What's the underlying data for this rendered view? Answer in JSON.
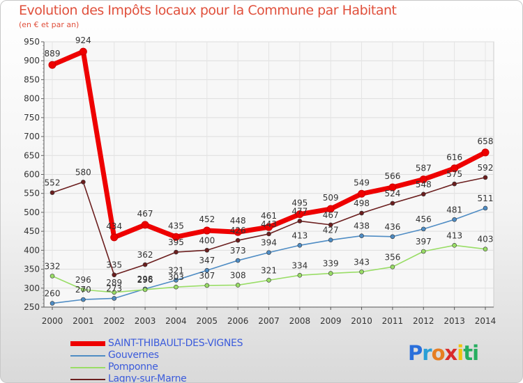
{
  "header": {
    "title": "Evolution des Impôts locaux pour la Commune par Habitant",
    "subtitle": "(en € et par an)"
  },
  "brand": {
    "letters": [
      "P",
      "r",
      "o",
      "x",
      "i",
      "t",
      "i"
    ],
    "colors": [
      "#2a6fdb",
      "#2a9fd6",
      "#e67e22",
      "#d92b2b",
      "#f1c40f",
      "#27ae60",
      "#27ae60"
    ]
  },
  "chart_data": {
    "type": "line",
    "title": "Evolution des Impôts locaux pour la Commune par Habitant",
    "ylabel": "(en € et par an)",
    "xlabel": "",
    "categories": [
      "2000",
      "2001",
      "2002",
      "2003",
      "2004",
      "2005",
      "2006",
      "2007",
      "2008",
      "2009",
      "2010",
      "2011",
      "2012",
      "2013",
      "2014"
    ],
    "ylim": [
      250,
      950
    ],
    "yticks": [
      "250",
      "300",
      "350",
      "400",
      "450",
      "500",
      "550",
      "600",
      "650",
      "700",
      "750",
      "800",
      "850",
      "900",
      "950"
    ],
    "series": [
      {
        "name": "SAINT-THIBAULT-DES-VIGNES",
        "color": "#ee0000",
        "values": [
          889,
          924,
          434,
          467,
          435,
          452,
          448,
          461,
          495,
          509,
          549,
          566,
          587,
          616,
          658
        ]
      },
      {
        "name": "Gouvernes",
        "color": "#4e8cc4",
        "values": [
          260,
          270,
          273,
          298,
          321,
          347,
          373,
          394,
          413,
          427,
          438,
          436,
          456,
          481,
          511
        ]
      },
      {
        "name": "Pomponne",
        "color": "#99dd66",
        "values": [
          332,
          296,
          289,
          296,
          303,
          307,
          308,
          321,
          334,
          339,
          343,
          356,
          397,
          413,
          403
        ]
      },
      {
        "name": "Lagny-sur-Marne",
        "color": "#6b1e1e",
        "values": [
          552,
          580,
          335,
          362,
          395,
          400,
          426,
          443,
          477,
          467,
          498,
          524,
          548,
          575,
          592
        ]
      }
    ],
    "legend_position": "bottom-left"
  }
}
